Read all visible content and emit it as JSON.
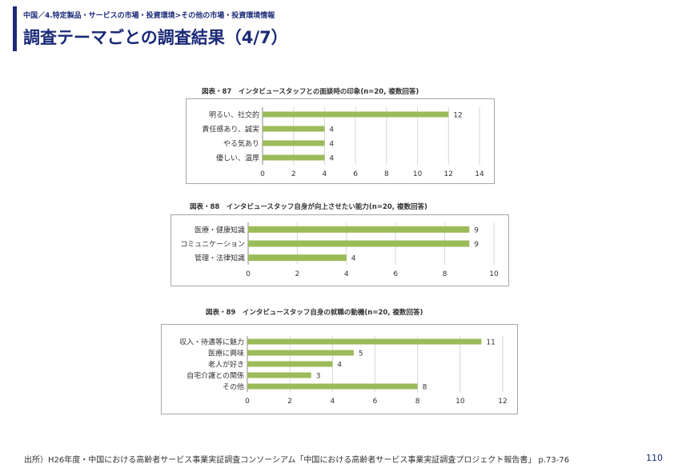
{
  "header": {
    "breadcrumb": "中国／4.特定製品・サービスの市場・投資環境>その他の市場・投資環境情報",
    "title": "調査テーマごとの調査結果（4/7）",
    "accent_color": "#1b2a78"
  },
  "chart_data": [
    {
      "type": "bar",
      "orientation": "horizontal",
      "title": "図表・87　インタビュースタッフとの面談時の印象(n=20, 複数回答)",
      "categories": [
        "明るい、社交的",
        "責任感あり、誠実",
        "やる気あり",
        "優しい、温厚"
      ],
      "values": [
        12,
        4,
        4,
        4
      ],
      "xlim": [
        0,
        14
      ],
      "xticks": [
        0,
        2,
        4,
        6,
        8,
        10,
        12,
        14
      ],
      "grid": true,
      "bar_color": "#9bbb59"
    },
    {
      "type": "bar",
      "orientation": "horizontal",
      "title": "図表・88　インタビュースタッフ自身が向上させたい能力(n=20, 複数回答)",
      "categories": [
        "医療・健康知識",
        "コミュニケーション",
        "管理・法律知識"
      ],
      "values": [
        9,
        9,
        4
      ],
      "xlim": [
        0,
        10
      ],
      "xticks": [
        0,
        2,
        4,
        6,
        8,
        10
      ],
      "grid": true,
      "bar_color": "#9bbb59"
    },
    {
      "type": "bar",
      "orientation": "horizontal",
      "title": "図表・89　インタビュースタッフ自身の就職の動機(n=20, 複数回答)",
      "categories": [
        "収入・待遇等に魅力",
        "医療に興味",
        "老人が好き",
        "自宅介護との関係",
        "その他"
      ],
      "values": [
        11,
        5,
        4,
        3,
        8
      ],
      "xlim": [
        0,
        12
      ],
      "xticks": [
        0,
        2,
        4,
        6,
        8,
        10,
        12
      ],
      "grid": true,
      "bar_color": "#9bbb59"
    }
  ],
  "footer": {
    "source": "出所）H26年度・中国における高齢者サービス事業実証調査コンソーシアム「中国における高齢者サービス事業実証調査プロジェクト報告書」 p.73-76",
    "page_number": "110"
  }
}
